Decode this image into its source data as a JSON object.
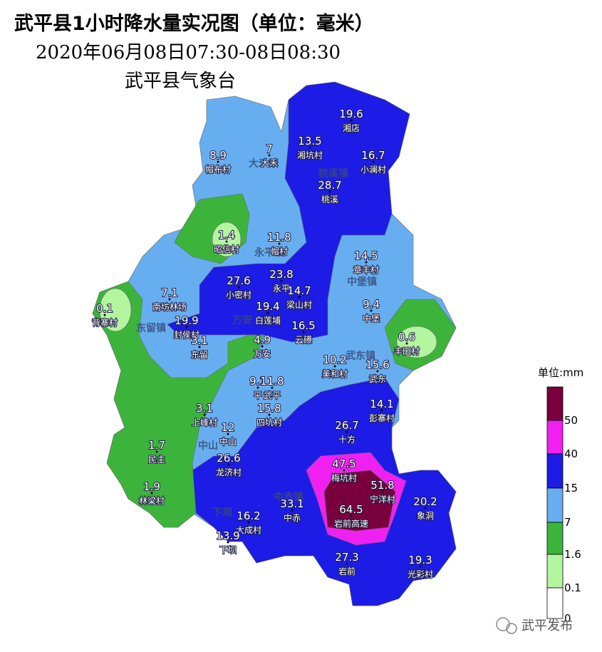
{
  "header": {
    "title": "武平县1小时降水量实况图（单位：毫米）",
    "time": "2020年06月08日07:30-08日08:30",
    "issuer": "武平县气象台"
  },
  "stations": [
    {
      "value": "19.6",
      "name": "湘店"
    },
    {
      "value": "13.5",
      "name": "湘坑村"
    },
    {
      "value": "16.7",
      "name": "小澜村"
    },
    {
      "value": "8.9",
      "name": "帽布村"
    },
    {
      "value": "7",
      "name": "大禾"
    },
    {
      "value": "28.7",
      "name": "桃溪"
    },
    {
      "value": "1.4",
      "name": "昭信村"
    },
    {
      "value": "11.8",
      "name": "帽村"
    },
    {
      "value": "14.5",
      "name": "章丰村"
    },
    {
      "value": "27.6",
      "name": "小密村"
    },
    {
      "value": "23.8",
      "name": "永平"
    },
    {
      "value": "14.7",
      "name": "梁山村"
    },
    {
      "value": "7.1",
      "name": "南坊林场"
    },
    {
      "value": "0.1",
      "name": "背寨村"
    },
    {
      "value": "9.4",
      "name": "中堡"
    },
    {
      "value": "19.4",
      "name": "白莲埔"
    },
    {
      "value": "19.9",
      "name": "封侯村"
    },
    {
      "value": "16.5",
      "name": "云礤"
    },
    {
      "value": "0.6",
      "name": "丰田村"
    },
    {
      "value": "3.1",
      "name": "东留"
    },
    {
      "value": "4.9",
      "name": "万安"
    },
    {
      "value": "10.2",
      "name": "美和村"
    },
    {
      "value": "15.6",
      "name": "武东"
    },
    {
      "value": "9.1",
      "name": "平"
    },
    {
      "value": "11.8",
      "name": "武平"
    },
    {
      "value": "15.8",
      "name": "四坑村"
    },
    {
      "value": "14.1",
      "name": "彭寨村"
    },
    {
      "value": "3.1",
      "name": "上峰村"
    },
    {
      "value": "26.7",
      "name": "十方"
    },
    {
      "value": "12",
      "name": "中山"
    },
    {
      "value": "1.7",
      "name": "民主"
    },
    {
      "value": "26.6",
      "name": "龙济村"
    },
    {
      "value": "47.5",
      "name": "梅坑村"
    },
    {
      "value": "51.8",
      "name": "宁洋村"
    },
    {
      "value": "1.9",
      "name": "林梁村"
    },
    {
      "value": "20.2",
      "name": "象洞"
    },
    {
      "value": "33.1",
      "name": "中赤"
    },
    {
      "value": "64.5",
      "name": "岩前高速"
    },
    {
      "value": "16.2",
      "name": "大成村"
    },
    {
      "value": "13.9",
      "name": "下坝"
    },
    {
      "value": "27.3",
      "name": "岩前"
    },
    {
      "value": "19.3",
      "name": "光彩村"
    }
  ],
  "towns": [
    "大禾镇",
    "桃溪镇",
    "永平镇",
    "中堡镇",
    "东留镇",
    "万安",
    "武东镇",
    "中赤镇",
    "中山",
    "下坝"
  ],
  "legend": {
    "title": "单位:mm",
    "labels": [
      "50",
      "40",
      "15",
      "7",
      "1.6",
      "0.1",
      "0"
    ],
    "colors": [
      "#78003c",
      "#f020f0",
      "#1c1ce6",
      "#66aef0",
      "#3cb43c",
      "#b4f5a0",
      "#ffffff"
    ]
  },
  "watermark": "武平发布"
}
